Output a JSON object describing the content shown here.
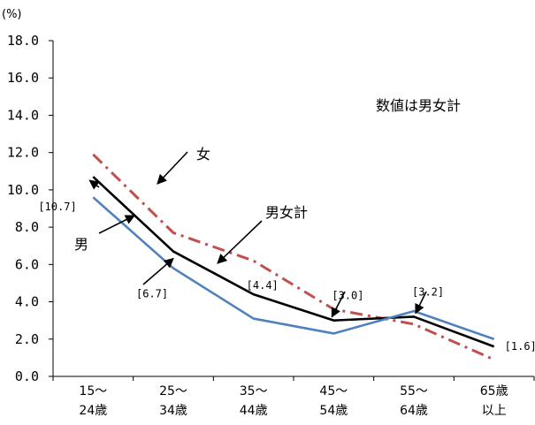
{
  "chart_data": {
    "type": "line",
    "unit_label": "(%)",
    "note": "数値は男女計",
    "categories": [
      [
        "15～",
        "24歳"
      ],
      [
        "25～",
        "34歳"
      ],
      [
        "35～",
        "44歳"
      ],
      [
        "45～",
        "54歳"
      ],
      [
        "55～",
        "64歳"
      ],
      [
        "65歳",
        "以上"
      ]
    ],
    "ylim": [
      0,
      18
    ],
    "yticks": [
      "0.0",
      "2.0",
      "4.0",
      "6.0",
      "8.0",
      "10.0",
      "12.0",
      "14.0",
      "16.0",
      "18.0"
    ],
    "grid": false,
    "series": [
      {
        "name": "女",
        "values": [
          11.9,
          7.7,
          6.2,
          3.6,
          2.8,
          0.9
        ],
        "color": "#C0504D",
        "style": "dash-dot"
      },
      {
        "name": "男女計",
        "values": [
          10.7,
          6.7,
          4.4,
          3.0,
          3.2,
          1.6
        ],
        "color": "#000000",
        "style": "solid"
      },
      {
        "name": "男",
        "values": [
          9.6,
          5.8,
          3.1,
          2.3,
          3.5,
          2.0
        ],
        "color": "#4F81BD",
        "style": "solid"
      }
    ],
    "data_labels": [
      {
        "series": "男女計",
        "index": 0,
        "text": "[10.7]"
      },
      {
        "series": "男女計",
        "index": 1,
        "text": "[6.7]"
      },
      {
        "series": "男女計",
        "index": 2,
        "text": "[4.4]"
      },
      {
        "series": "男女計",
        "index": 3,
        "text": "[3.0]"
      },
      {
        "series": "男女計",
        "index": 4,
        "text": "[3.2]"
      },
      {
        "series": "男女計",
        "index": 5,
        "text": "[1.6]"
      }
    ]
  }
}
